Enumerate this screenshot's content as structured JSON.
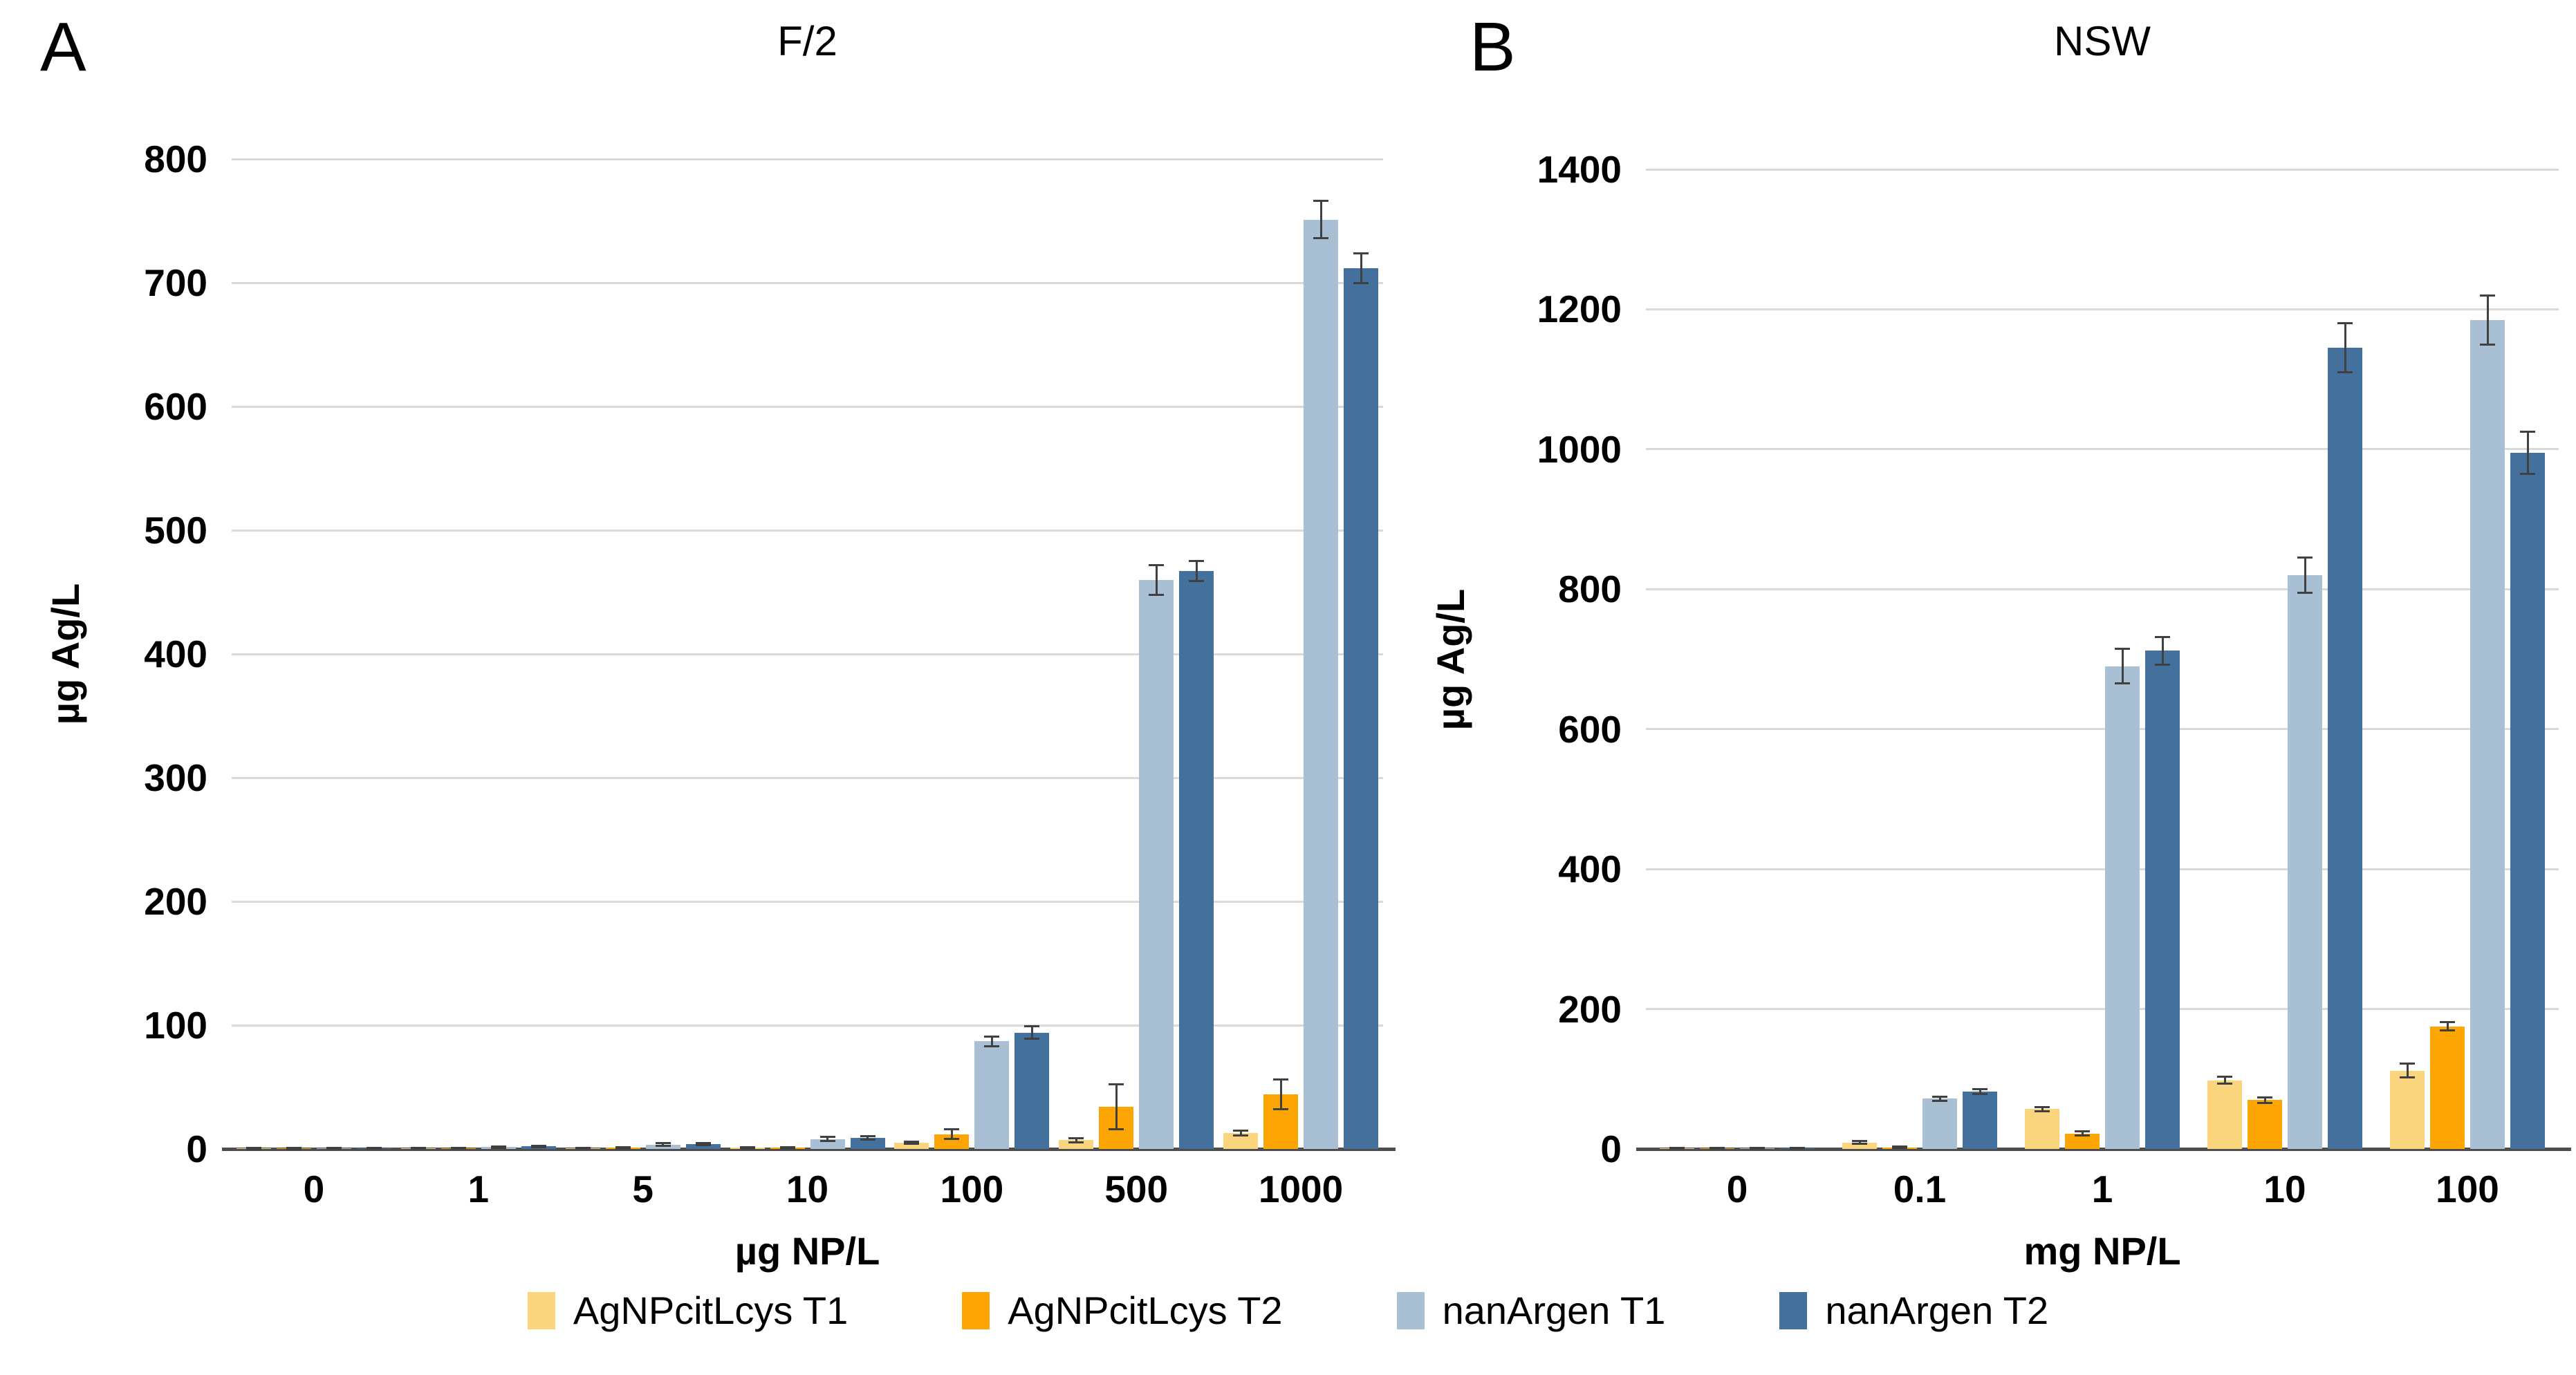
{
  "chart_data": [
    {
      "type": "bar",
      "corner_label": "A",
      "title": "F/2",
      "xlabel": "µg NP/L",
      "ylabel": "µg Ag/L",
      "ylim": [
        0,
        800
      ],
      "yticks": [
        0,
        100,
        200,
        300,
        400,
        500,
        600,
        700,
        800
      ],
      "grid": true,
      "categories": [
        "0",
        "1",
        "5",
        "10",
        "100",
        "500",
        "1000"
      ],
      "series": [
        {
          "name": "AgNPcitLcys T1",
          "color": "#FBD47E",
          "values": [
            0.3,
            0.5,
            0.7,
            1,
            5,
            7,
            13
          ],
          "errors": [
            0.3,
            0.3,
            0.4,
            0.5,
            1,
            1.5,
            2
          ]
        },
        {
          "name": "AgNPcitLcys T2",
          "color": "#FCA503",
          "values": [
            0.3,
            0.5,
            1,
            1,
            12,
            34,
            44
          ],
          "errors": [
            0.3,
            0.3,
            0.5,
            0.5,
            4,
            18,
            12
          ]
        },
        {
          "name": "nanArgen T1",
          "color": "#A9BFD4",
          "values": [
            0.5,
            1.5,
            3.5,
            8,
            87,
            460,
            751
          ],
          "errors": [
            0.3,
            0.5,
            1,
            1.5,
            4,
            12,
            15
          ]
        },
        {
          "name": "nanArgen T2",
          "color": "#44709D",
          "values": [
            0.5,
            2,
            4,
            9,
            94,
            467,
            712
          ],
          "errors": [
            0.3,
            0.5,
            1,
            1.5,
            5,
            8,
            12
          ]
        }
      ]
    },
    {
      "type": "bar",
      "corner_label": "B",
      "title": "NSW",
      "xlabel": "mg NP/L",
      "ylabel": "µg Ag/L",
      "ylim": [
        0,
        1400
      ],
      "yticks": [
        0,
        200,
        400,
        600,
        800,
        1000,
        1200,
        1400
      ],
      "grid": true,
      "categories": [
        "0",
        "0.1",
        "1",
        "10",
        "100"
      ],
      "series": [
        {
          "name": "AgNPcitLcys T1",
          "color": "#FBD47E",
          "values": [
            1,
            9,
            57,
            98,
            112
          ],
          "errors": [
            0.5,
            2,
            3,
            5,
            10
          ]
        },
        {
          "name": "AgNPcitLcys T2",
          "color": "#FCA503",
          "values": [
            1,
            2,
            22,
            70,
            175
          ],
          "errors": [
            0.5,
            1,
            3,
            4,
            6
          ]
        },
        {
          "name": "nanArgen T1",
          "color": "#A9BFD4",
          "values": [
            1,
            72,
            690,
            820,
            1185
          ],
          "errors": [
            0.5,
            3,
            25,
            25,
            35
          ]
        },
        {
          "name": "nanArgen T2",
          "color": "#44709D",
          "values": [
            1,
            82,
            712,
            1145,
            995
          ],
          "errors": [
            0.5,
            3,
            20,
            35,
            30
          ]
        }
      ]
    }
  ],
  "legend": {
    "position": "bottom",
    "entries": [
      {
        "label": "AgNPcitLcys T1",
        "color": "#FBD47E"
      },
      {
        "label": "AgNPcitLcys T2",
        "color": "#FCA503"
      },
      {
        "label": "nanArgen T1",
        "color": "#A9BFD4"
      },
      {
        "label": "nanArgen T2",
        "color": "#44709D"
      }
    ]
  },
  "style_colors": {
    "gridline": "#D9D9D9",
    "axis_line": "#4D4D4D",
    "error_bar": "#404040",
    "background": "#FFFFFF"
  }
}
